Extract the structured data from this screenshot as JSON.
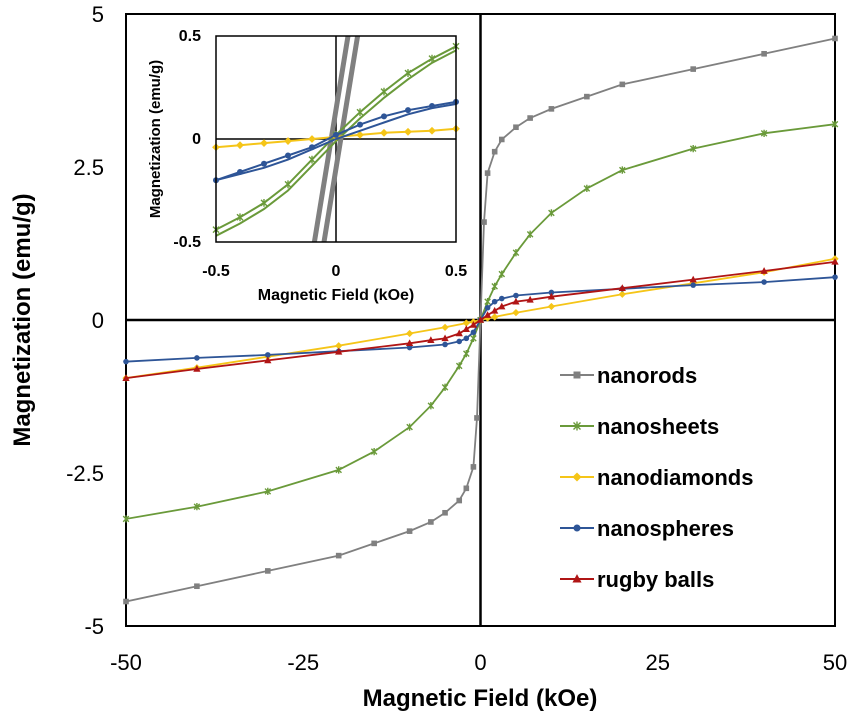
{
  "chart_data": [
    {
      "type": "line",
      "id": "main",
      "xlabel": "Magnetic Field (kOe)",
      "ylabel": "Magnetization (emu/g)",
      "xlim": [
        -50,
        50
      ],
      "ylim": [
        -5,
        5
      ],
      "xticks": [
        -50,
        -25,
        0,
        25,
        50
      ],
      "yticks": [
        -5,
        -2.5,
        0,
        2.5,
        5
      ],
      "x_tick_labels": [
        "-50",
        "-25",
        "0",
        "25",
        "50"
      ],
      "y_tick_labels": [
        "-5",
        "-2.5",
        "0",
        "2.5",
        "5"
      ],
      "grid": false,
      "legend_position": "lower-right",
      "series": [
        {
          "name": "nanorods",
          "color": "#808080",
          "marker": "square",
          "x": [
            -50,
            -40,
            -30,
            -20,
            -15,
            -10,
            -7,
            -5,
            -3,
            -2,
            -1,
            -0.5,
            0,
            0.5,
            1,
            2,
            3,
            5,
            7,
            10,
            15,
            20,
            30,
            40,
            50
          ],
          "y": [
            -4.6,
            -4.35,
            -4.1,
            -3.85,
            -3.65,
            -3.45,
            -3.3,
            -3.15,
            -2.95,
            -2.75,
            -2.4,
            -1.6,
            0,
            1.6,
            2.4,
            2.75,
            2.95,
            3.15,
            3.3,
            3.45,
            3.65,
            3.85,
            4.1,
            4.35,
            4.6
          ]
        },
        {
          "name": "nanosheets",
          "color": "#6a9a3a",
          "marker": "star",
          "x": [
            -50,
            -40,
            -30,
            -20,
            -15,
            -10,
            -7,
            -5,
            -3,
            -2,
            -1,
            0,
            1,
            2,
            3,
            5,
            7,
            10,
            15,
            20,
            30,
            40,
            50
          ],
          "y": [
            -3.25,
            -3.05,
            -2.8,
            -2.45,
            -2.15,
            -1.75,
            -1.4,
            -1.1,
            -0.75,
            -0.55,
            -0.3,
            0,
            0.3,
            0.55,
            0.75,
            1.1,
            1.4,
            1.75,
            2.15,
            2.45,
            2.8,
            3.05,
            3.2
          ]
        },
        {
          "name": "nanodiamonds",
          "color": "#f5c518",
          "marker": "diamond",
          "x": [
            -50,
            -40,
            -30,
            -20,
            -10,
            -5,
            -2,
            -1,
            0,
            1,
            2,
            5,
            10,
            20,
            30,
            40,
            50
          ],
          "y": [
            -0.95,
            -0.78,
            -0.6,
            -0.42,
            -0.22,
            -0.12,
            -0.05,
            -0.03,
            0,
            0.03,
            0.05,
            0.12,
            0.22,
            0.42,
            0.6,
            0.78,
            1.0
          ]
        },
        {
          "name": "nanospheres",
          "color": "#2e5597",
          "marker": "circle",
          "x": [
            -50,
            -40,
            -30,
            -20,
            -10,
            -5,
            -3,
            -2,
            -1,
            0,
            1,
            2,
            3,
            5,
            10,
            20,
            30,
            40,
            50
          ],
          "y": [
            -0.68,
            -0.62,
            -0.57,
            -0.51,
            -0.45,
            -0.4,
            -0.35,
            -0.3,
            -0.2,
            0,
            0.2,
            0.3,
            0.35,
            0.4,
            0.45,
            0.51,
            0.57,
            0.62,
            0.7
          ]
        },
        {
          "name": "rugby balls",
          "color": "#b01515",
          "marker": "triangle",
          "x": [
            -50,
            -40,
            -30,
            -20,
            -10,
            -7,
            -5,
            -3,
            -2,
            -1,
            0,
            1,
            2,
            3,
            5,
            7,
            10,
            20,
            30,
            40,
            50
          ],
          "y": [
            -0.95,
            -0.8,
            -0.66,
            -0.52,
            -0.38,
            -0.33,
            -0.3,
            -0.22,
            -0.15,
            -0.08,
            0,
            0.08,
            0.15,
            0.22,
            0.3,
            0.33,
            0.38,
            0.52,
            0.66,
            0.8,
            0.95
          ]
        }
      ]
    },
    {
      "type": "line",
      "id": "inset",
      "xlabel": "Magnetic Field (kOe)",
      "ylabel": "Magnetization (emu/g)",
      "xlim": [
        -0.5,
        0.5
      ],
      "ylim": [
        -0.5,
        0.5
      ],
      "xticks": [
        -0.5,
        0,
        0.5
      ],
      "yticks": [
        -0.5,
        0,
        0.5
      ],
      "x_tick_labels": [
        "-0.5",
        "0",
        "0.5"
      ],
      "y_tick_labels": [
        "-0.5",
        "0",
        "0.5"
      ],
      "grid": false,
      "series": [
        {
          "name": "nanorods",
          "color": "#808080",
          "marker": "none",
          "x": [
            -0.09,
            0.05
          ],
          "y": [
            -0.5,
            0.5
          ],
          "x_return": [
            -0.05,
            0.09
          ],
          "y_return": [
            -0.5,
            0.5
          ]
        },
        {
          "name": "nanosheets",
          "color": "#6a9a3a",
          "marker": "star",
          "x": [
            -0.5,
            -0.4,
            -0.3,
            -0.2,
            -0.1,
            0,
            0.1,
            0.2,
            0.3,
            0.4,
            0.5
          ],
          "y": [
            -0.44,
            -0.38,
            -0.31,
            -0.22,
            -0.1,
            0.02,
            0.13,
            0.23,
            0.32,
            0.39,
            0.45
          ],
          "y_return": [
            -0.47,
            -0.41,
            -0.34,
            -0.25,
            -0.13,
            -0.01,
            0.1,
            0.2,
            0.29,
            0.37,
            0.43
          ]
        },
        {
          "name": "nanodiamonds",
          "color": "#f5c518",
          "marker": "diamond",
          "x": [
            -0.5,
            -0.4,
            -0.3,
            -0.2,
            -0.1,
            0,
            0.1,
            0.2,
            0.3,
            0.4,
            0.5
          ],
          "y": [
            -0.04,
            -0.03,
            -0.02,
            -0.01,
            0,
            0.01,
            0.02,
            0.03,
            0.035,
            0.04,
            0.05
          ]
        },
        {
          "name": "nanospheres",
          "color": "#2e5597",
          "marker": "circle",
          "x": [
            -0.5,
            -0.4,
            -0.3,
            -0.2,
            -0.1,
            0,
            0.1,
            0.2,
            0.3,
            0.4,
            0.5
          ],
          "y": [
            -0.2,
            -0.16,
            -0.12,
            -0.08,
            -0.04,
            0.02,
            0.07,
            0.11,
            0.14,
            0.16,
            0.18
          ],
          "y_return": [
            -0.2,
            -0.17,
            -0.14,
            -0.1,
            -0.05,
            0,
            0.04,
            0.08,
            0.12,
            0.15,
            0.17
          ]
        }
      ]
    }
  ]
}
